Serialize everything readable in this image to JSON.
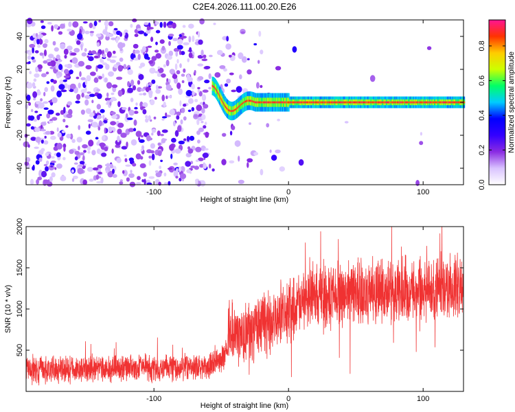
{
  "title": "C2E4.2026.111.00.20.E26",
  "chart_data": [
    {
      "type": "heatmap",
      "name": "spectrogram",
      "xlabel": "Height of straight line (km)",
      "ylabel": "Frequency (Hz)",
      "xlim": [
        -195,
        130
      ],
      "ylim": [
        -50,
        50
      ],
      "xticks": [
        -100,
        0,
        100
      ],
      "yticks": [
        -40,
        -20,
        0,
        20,
        40
      ],
      "noise_region_x": [
        -195,
        -50
      ],
      "signal_band": {
        "x_start": -57,
        "x_end": 130,
        "center_freq": 0,
        "halfwidth_hz": 2.5,
        "start_offset_hz": 10
      },
      "colorbar": {
        "label": "Normalized spectral amplitude",
        "range": [
          0,
          0.95
        ],
        "ticks": [
          0.0,
          0.2,
          0.4,
          0.6,
          0.8
        ],
        "tick_labels": [
          "0.0",
          "0.2",
          "0.4",
          "0.6",
          "0.8"
        ],
        "colors": [
          "#ffffff",
          "#d9c3ff",
          "#8a2be2",
          "#3300ff",
          "#0000ff",
          "#00ccff",
          "#00ff66",
          "#ccff00",
          "#ffcc00",
          "#ff3300",
          "#ff1493"
        ]
      }
    },
    {
      "type": "line",
      "name": "snr",
      "xlabel": "Height of straight line (km)",
      "ylabel": "SNR (10 * v/v)",
      "xlim": [
        -195,
        130
      ],
      "ylim": [
        0,
        2000
      ],
      "xticks": [
        -100,
        0,
        100
      ],
      "yticks": [
        500,
        1000,
        1500,
        2000
      ],
      "color": "#f03232",
      "series": [
        {
          "name": "SNR",
          "description_points_x": [
            -195,
            -60,
            -48,
            -42,
            -38,
            -30,
            -20,
            -10,
            0,
            10,
            20,
            40,
            60,
            80,
            100,
            120,
            130
          ],
          "description_points_y": [
            250,
            300,
            400,
            800,
            650,
            700,
            800,
            900,
            950,
            1050,
            1150,
            1200,
            1200,
            1250,
            1250,
            1250,
            1250
          ]
        }
      ]
    }
  ]
}
